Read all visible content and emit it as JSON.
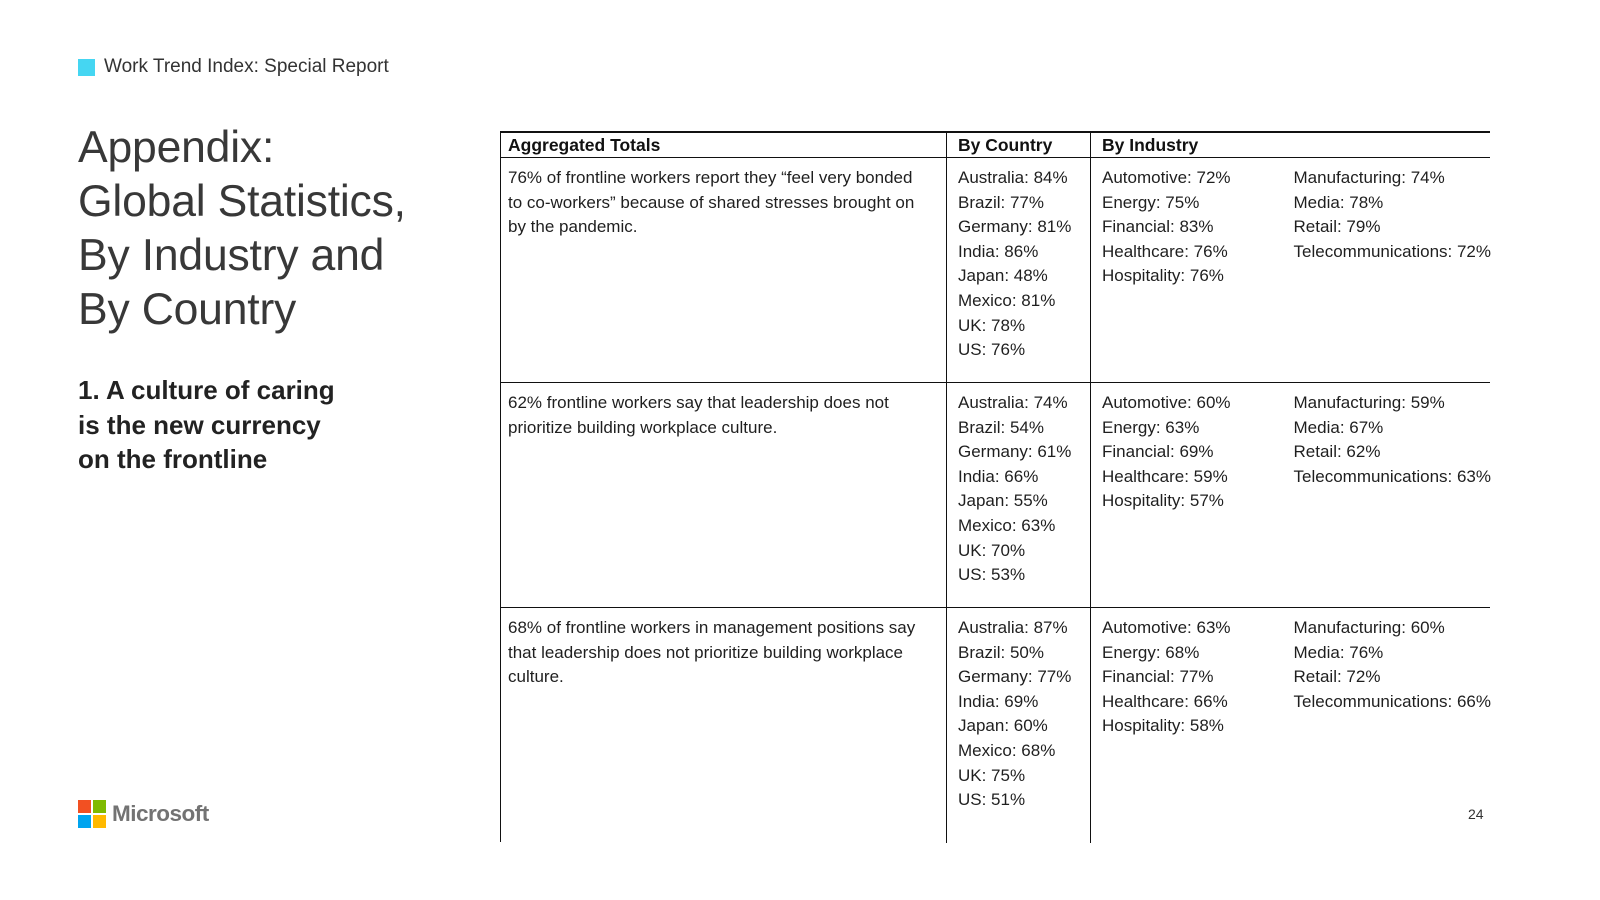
{
  "brand": {
    "label": "Work Trend Index: Special Report",
    "accent_color": "#45D6F2"
  },
  "left_panel": {
    "title": "Appendix:\nGlobal Statistics,\nBy Industry and\nBy Country",
    "subtitle": "1. A culture of caring\nis the new currency\non the frontline"
  },
  "table": {
    "headers": [
      "Aggregated Totals",
      "By Country",
      "By Industry"
    ],
    "rows": [
      {
        "total": "76% of frontline workers report they “feel very bonded to co-workers” because of shared stresses brought on by the pandemic.",
        "by_country": [
          "Australia: 84%",
          "Brazil: 77%",
          "Germany: 81%",
          "India: 86%",
          "Japan: 48%",
          "Mexico: 81%",
          "UK: 78%",
          "US: 76%"
        ],
        "by_industry_col1": [
          "Automotive: 72%",
          "Energy: 75%",
          "Financial: 83%",
          "Healthcare: 76%",
          "Hospitality: 76%"
        ],
        "by_industry_col2": [
          "Manufacturing: 74%",
          "Media: 78%",
          "Retail: 79%",
          "Telecommunications: 72%"
        ]
      },
      {
        "total": "62% frontline workers say that leadership does not prioritize building workplace culture.",
        "by_country": [
          "Australia: 74%",
          "Brazil: 54%",
          "Germany: 61%",
          "India: 66%",
          "Japan: 55%",
          "Mexico: 63%",
          "UK: 70%",
          "US: 53%"
        ],
        "by_industry_col1": [
          "Automotive: 60%",
          "Energy: 63%",
          "Financial: 69%",
          "Healthcare: 59%",
          "Hospitality: 57%"
        ],
        "by_industry_col2": [
          "Manufacturing: 59%",
          "Media: 67%",
          "Retail: 62%",
          "Telecommunications: 63%"
        ]
      },
      {
        "total": "68% of frontline workers in management positions say that leadership does not prioritize building workplace culture.",
        "by_country": [
          "Australia: 87%",
          "Brazil: 50%",
          "Germany: 77%",
          "India: 69%",
          "Japan: 60%",
          "Mexico: 68%",
          "UK: 75%",
          "US: 51%"
        ],
        "by_industry_col1": [
          "Automotive: 63%",
          "Energy: 68%",
          "Financial: 77%",
          "Healthcare: 66%",
          "Hospitality: 58%"
        ],
        "by_industry_col2": [
          "Manufacturing: 60%",
          "Media: 76%",
          "Retail: 72%",
          "Telecommunications: 66%"
        ]
      }
    ]
  },
  "footer": {
    "logo_name": "Microsoft",
    "logo_colors": {
      "top_left": "#F25022",
      "top_right": "#7FBA00",
      "bottom_left": "#00A4EF",
      "bottom_right": "#FFB900"
    },
    "page_number": "24"
  }
}
